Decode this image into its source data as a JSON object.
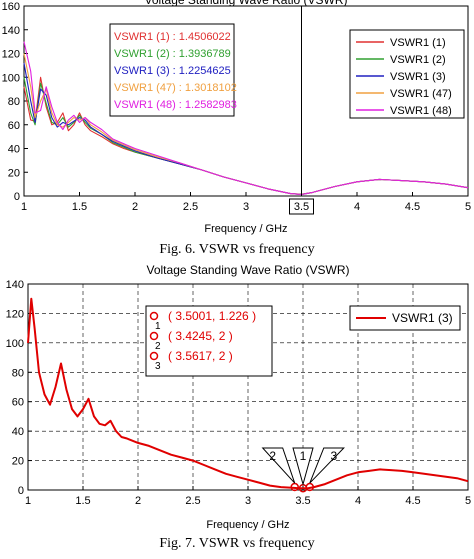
{
  "chart_data": [
    {
      "type": "line",
      "title": "Voltage Standing Wave Ratio (VSWR)",
      "xlabel": "Frequency / GHz",
      "ylabel": "",
      "xlim": [
        1,
        5
      ],
      "ylim": [
        0,
        160
      ],
      "x_ticks": [
        "1",
        "1.5",
        "2",
        "2.5",
        "3",
        "3.5",
        "4",
        "4.5",
        "5"
      ],
      "y_ticks": [
        "0",
        "20",
        "40",
        "60",
        "80",
        "100",
        "120",
        "140",
        "160"
      ],
      "grid": false,
      "legend_position": "top-right",
      "marker_x": 3.5,
      "marker_label": "3.5",
      "readouts": [
        {
          "text": "VSWR1 (1) : 1.4506022",
          "color": "#e03030"
        },
        {
          "text": "VSWR1 (2) : 1.3936789",
          "color": "#30a030"
        },
        {
          "text": "VSWR1 (3) : 1.2254625",
          "color": "#2020c0"
        },
        {
          "text": "VSWR1 (47) : 1.3018102",
          "color": "#f0a040"
        },
        {
          "text": "VSWR1 (48) : 1.2582983",
          "color": "#e020e0"
        }
      ],
      "series": [
        {
          "name": "VSWR1 (1)",
          "color": "#e03030",
          "x": [
            1.0,
            1.06,
            1.1,
            1.15,
            1.2,
            1.25,
            1.3,
            1.35,
            1.4,
            1.45,
            1.5,
            1.55,
            1.6,
            1.7,
            1.8,
            1.9,
            2.0,
            2.2,
            2.4,
            2.6,
            2.8,
            3.0,
            3.2,
            3.4,
            3.5,
            3.6,
            3.8,
            4.0,
            4.2,
            4.4,
            4.6,
            4.8,
            5.0
          ],
          "y": [
            92,
            64,
            63,
            100,
            75,
            60,
            62,
            70,
            55,
            60,
            70,
            60,
            55,
            50,
            44,
            40,
            37,
            32,
            27,
            22,
            16,
            11,
            6,
            2,
            1.5,
            3,
            8,
            12,
            14,
            13,
            12,
            10,
            7
          ]
        },
        {
          "name": "VSWR1 (2)",
          "color": "#30a030",
          "x": [
            1.0,
            1.06,
            1.1,
            1.15,
            1.2,
            1.25,
            1.3,
            1.35,
            1.4,
            1.45,
            1.5,
            1.55,
            1.6,
            1.7,
            1.8,
            1.9,
            2.0,
            2.2,
            2.4,
            2.6,
            2.8,
            3.0,
            3.2,
            3.4,
            3.5,
            3.6,
            3.8,
            4.0,
            4.2,
            4.4,
            4.6,
            4.8,
            5.0
          ],
          "y": [
            100,
            70,
            60,
            95,
            78,
            62,
            60,
            66,
            58,
            62,
            68,
            62,
            57,
            52,
            45,
            41,
            37,
            32,
            27,
            22,
            16,
            11,
            6,
            2,
            1.4,
            3,
            8,
            12,
            14,
            13,
            12,
            10,
            7
          ]
        },
        {
          "name": "VSWR1 (3)",
          "color": "#2020c0",
          "x": [
            1.0,
            1.06,
            1.1,
            1.15,
            1.2,
            1.25,
            1.3,
            1.35,
            1.4,
            1.45,
            1.5,
            1.55,
            1.6,
            1.7,
            1.8,
            1.9,
            2.0,
            2.2,
            2.4,
            2.6,
            2.8,
            3.0,
            3.2,
            3.4,
            3.5,
            3.6,
            3.8,
            4.0,
            4.2,
            4.4,
            4.6,
            4.8,
            5.0
          ],
          "y": [
            112,
            80,
            62,
            90,
            85,
            66,
            58,
            62,
            60,
            63,
            66,
            64,
            58,
            52,
            46,
            42,
            38,
            32,
            27,
            22,
            16,
            11,
            6,
            2,
            1.2,
            3,
            8,
            12,
            14,
            13,
            12,
            10,
            7
          ]
        },
        {
          "name": "VSWR1 (47)",
          "color": "#f0a040",
          "x": [
            1.0,
            1.06,
            1.1,
            1.15,
            1.2,
            1.25,
            1.3,
            1.35,
            1.4,
            1.45,
            1.5,
            1.55,
            1.6,
            1.7,
            1.8,
            1.9,
            2.0,
            2.2,
            2.4,
            2.6,
            2.8,
            3.0,
            3.2,
            3.4,
            3.5,
            3.6,
            3.8,
            4.0,
            4.2,
            4.4,
            4.6,
            4.8,
            5.0
          ],
          "y": [
            120,
            92,
            66,
            80,
            90,
            70,
            60,
            58,
            62,
            66,
            64,
            66,
            60,
            54,
            47,
            43,
            39,
            33,
            28,
            22,
            16,
            11,
            6,
            2,
            1.3,
            3,
            8,
            12,
            14,
            13,
            12,
            10,
            7
          ]
        },
        {
          "name": "VSWR1 (48)",
          "color": "#e020e0",
          "x": [
            1.0,
            1.06,
            1.1,
            1.15,
            1.2,
            1.25,
            1.3,
            1.35,
            1.4,
            1.45,
            1.5,
            1.55,
            1.6,
            1.7,
            1.8,
            1.9,
            2.0,
            2.2,
            2.4,
            2.6,
            2.8,
            3.0,
            3.2,
            3.4,
            3.5,
            3.6,
            3.8,
            4.0,
            4.2,
            4.4,
            4.6,
            4.8,
            5.0
          ],
          "y": [
            130,
            105,
            70,
            72,
            92,
            75,
            62,
            56,
            64,
            68,
            62,
            66,
            62,
            56,
            48,
            44,
            40,
            34,
            28,
            22,
            16,
            11,
            6,
            2,
            1.3,
            3,
            8,
            12,
            14,
            13,
            12,
            10,
            7
          ]
        }
      ]
    },
    {
      "type": "line",
      "title": "Voltage Standing Wave Ratio (VSWR)",
      "xlabel": "Frequency / GHz",
      "ylabel": "",
      "xlim": [
        1,
        5
      ],
      "ylim": [
        0,
        140
      ],
      "x_ticks": [
        "1",
        "1.5",
        "2",
        "2.5",
        "3",
        "3.5",
        "4",
        "4.5",
        "5"
      ],
      "y_ticks": [
        "0",
        "20",
        "40",
        "60",
        "80",
        "100",
        "120",
        "140"
      ],
      "grid": true,
      "legend_position": "top-right",
      "annotations": [
        {
          "id": "1",
          "text": "( 3.5001, 1.226 )",
          "x": 3.5001,
          "y": 1.226
        },
        {
          "id": "2",
          "text": "( 3.4245, 2 )",
          "x": 3.4245,
          "y": 2
        },
        {
          "id": "3",
          "text": "( 3.5617, 2 )",
          "x": 3.5617,
          "y": 2
        }
      ],
      "series": [
        {
          "name": "VSWR1 (3)",
          "color": "#e00000",
          "x": [
            1.0,
            1.03,
            1.06,
            1.1,
            1.15,
            1.2,
            1.25,
            1.3,
            1.35,
            1.4,
            1.45,
            1.5,
            1.55,
            1.6,
            1.65,
            1.7,
            1.75,
            1.8,
            1.85,
            1.9,
            2.0,
            2.1,
            2.2,
            2.3,
            2.4,
            2.5,
            2.6,
            2.7,
            2.8,
            2.9,
            3.0,
            3.1,
            3.2,
            3.3,
            3.4,
            3.45,
            3.5,
            3.55,
            3.6,
            3.7,
            3.8,
            3.9,
            4.0,
            4.1,
            4.2,
            4.3,
            4.4,
            4.5,
            4.6,
            4.7,
            4.8,
            4.9,
            5.0
          ],
          "y": [
            100,
            130,
            110,
            80,
            65,
            58,
            70,
            86,
            68,
            55,
            50,
            55,
            62,
            50,
            45,
            44,
            47,
            40,
            36,
            35,
            32,
            30,
            27,
            24,
            22,
            20,
            17,
            14,
            11,
            9,
            7,
            5,
            3,
            2,
            1.5,
            1.3,
            1.2,
            1.3,
            2,
            4,
            7,
            10,
            12,
            13,
            14,
            13.5,
            13,
            12,
            11,
            10,
            9,
            8,
            6
          ]
        }
      ]
    }
  ],
  "captions": {
    "fig6": "Fig. 6.   VSWR vs frequency",
    "fig7": "Fig. 7.   VSWR vs frequency"
  }
}
